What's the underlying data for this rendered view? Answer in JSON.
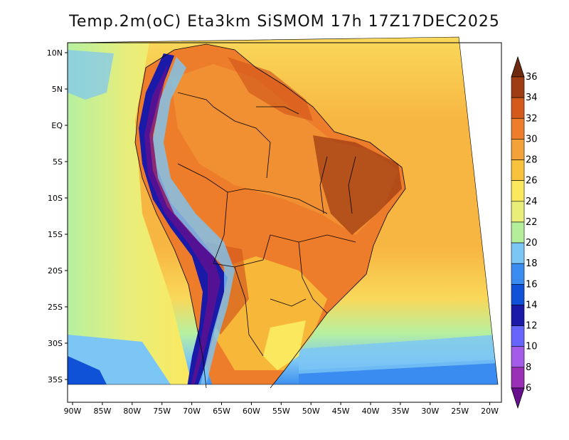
{
  "title": "Temp.2m(oC) Eta3km SiSMOM 17h 17Z17DEC2025",
  "map": {
    "lat_labels": [
      "10N",
      "5N",
      "EQ",
      "5S",
      "10S",
      "15S",
      "20S",
      "25S",
      "30S",
      "35S"
    ],
    "lon_labels": [
      "90W",
      "85W",
      "80W",
      "75W",
      "70W",
      "65W",
      "60W",
      "55W",
      "50W",
      "45W",
      "40W",
      "35W",
      "30W",
      "25W",
      "20W"
    ],
    "lat_range": [
      -38,
      11
    ],
    "lon_range": [
      -90.5,
      -19.5
    ]
  },
  "colorbar": {
    "labels": [
      "6",
      "8",
      "10",
      "12",
      "14",
      "16",
      "18",
      "20",
      "22",
      "24",
      "26",
      "28",
      "30",
      "32",
      "34",
      "36"
    ],
    "colors": [
      "#6a0f8e",
      "#9b2fb5",
      "#a45bea",
      "#6666ff",
      "#1a1aa8",
      "#0f52d8",
      "#3a8cf0",
      "#7cc6f5",
      "#b4ee9b",
      "#e9ee7a",
      "#fbe85e",
      "#f8c23c",
      "#f4a13a",
      "#ee7d2b",
      "#d45a1c",
      "#a03c14",
      "#6e2a10"
    ]
  },
  "colors": {
    "ocean_warm": "#f7b541",
    "ocean_mid": "#f9d85a",
    "ocean_cool": "#b6f0a0",
    "land_hot": "#e97f2e",
    "land_very_hot": "#c9531a",
    "andes_cold": "#2b2ec8"
  }
}
